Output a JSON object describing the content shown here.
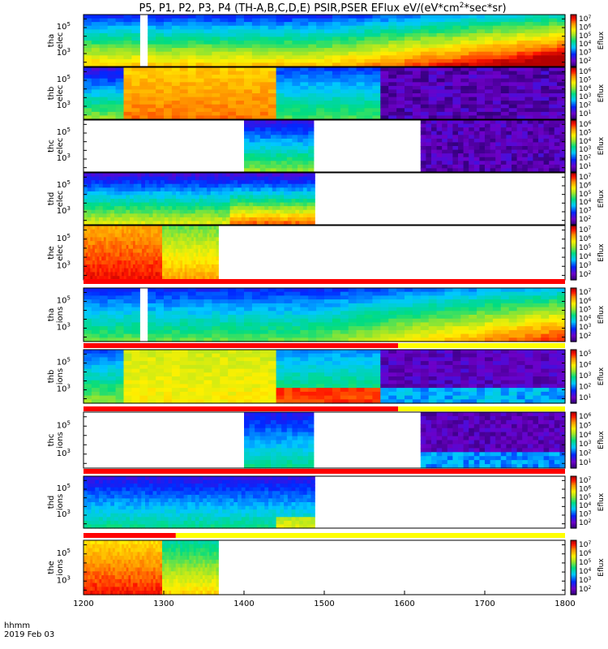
{
  "chart_data": {
    "type": "heatmap",
    "title": "P5, P1, P2, P3, P4 (TH-A,B,C,D,E) PSIR,PSER EFlux eV/(eV*cm",
    "title_sup": "2",
    "title_end": "*sec*sr)",
    "x_tick_labels": [
      "1200",
      "1300",
      "1400",
      "1500",
      "1600",
      "1700",
      "1800"
    ],
    "x_ticks": [
      1200,
      1300,
      1400,
      1500,
      1600,
      1700,
      1800
    ],
    "xlim": [
      1200,
      1800
    ],
    "x_footer": [
      "hhmm",
      "2019 Feb 03"
    ],
    "colorbar_label": "Eflux",
    "panels": [
      {
        "line1": "tha",
        "line2": "elec",
        "yticks": [
          "10",
          "10"
        ],
        "yexp": [
          "5",
          "3"
        ],
        "colorbar_ticks": [
          "10",
          "10",
          "10",
          "10",
          "10",
          "10"
        ],
        "colorbar_exp": [
          "7",
          "6",
          "5",
          "4",
          "3",
          "2"
        ],
        "data_start": 1200,
        "data_end": 1800,
        "gap": [
          1267,
          1281
        ],
        "kind": "tha_e"
      },
      {
        "line1": "thb",
        "line2": "elec",
        "yticks": [
          "10",
          "10"
        ],
        "yexp": [
          "5",
          "3"
        ],
        "colorbar_ticks": [
          "10",
          "10",
          "10",
          "10",
          "10",
          "10"
        ],
        "colorbar_exp": [
          "6",
          "5",
          "4",
          "3",
          "2",
          "1"
        ],
        "data_start": 1200,
        "data_end": 1800,
        "gap": null,
        "kind": "thb_e"
      },
      {
        "line1": "thc",
        "line2": "elec",
        "yticks": [
          "10",
          "10"
        ],
        "yexp": [
          "5",
          "3"
        ],
        "colorbar_ticks": [
          "10",
          "10",
          "10",
          "10",
          "10",
          "10"
        ],
        "colorbar_exp": [
          "6",
          "5",
          "4",
          "3",
          "2",
          "1"
        ],
        "data_start": 1400,
        "data_end": 1800,
        "gap": [
          1488,
          1618
        ],
        "kind": "thc_e"
      },
      {
        "line1": "thd",
        "line2": "elec",
        "yticks": [
          "10",
          "10"
        ],
        "yexp": [
          "5",
          "3"
        ],
        "colorbar_ticks": [
          "10",
          "10",
          "10",
          "10",
          "10",
          "10"
        ],
        "colorbar_exp": [
          "7",
          "6",
          "5",
          "4",
          "3",
          "2"
        ],
        "data_start": 1200,
        "data_end": 1488,
        "gap": null,
        "kind": "thd_e"
      },
      {
        "line1": "the",
        "line2": "elec",
        "yticks": [
          "10",
          "10"
        ],
        "yexp": [
          "5",
          "3"
        ],
        "colorbar_ticks": [
          "10",
          "10",
          "10",
          "10",
          "10",
          "10"
        ],
        "colorbar_exp": [
          "7",
          "6",
          "5",
          "4",
          "3",
          "2"
        ],
        "data_start": 1200,
        "data_end": 1368,
        "gap": null,
        "kind": "the_e"
      },
      {
        "line1": "tha",
        "line2": "ions",
        "yticks": [
          "10",
          "10"
        ],
        "yexp": [
          "5",
          "3"
        ],
        "colorbar_ticks": [
          "10",
          "10",
          "10",
          "10",
          "10",
          "10"
        ],
        "colorbar_exp": [
          "7",
          "6",
          "5",
          "4",
          "3",
          "2"
        ],
        "data_start": 1200,
        "data_end": 1800,
        "gap": [
          1267,
          1281
        ],
        "kind": "tha_i"
      },
      {
        "line1": "thb",
        "line2": "ions",
        "yticks": [
          "10",
          "10"
        ],
        "yexp": [
          "5",
          "3"
        ],
        "colorbar_ticks": [
          "10",
          "10",
          "10",
          "10",
          "10"
        ],
        "colorbar_exp": [
          "5",
          "4",
          "3",
          "2",
          "1"
        ],
        "data_start": 1200,
        "data_end": 1800,
        "gap": null,
        "kind": "thb_i"
      },
      {
        "line1": "thc",
        "line2": "ions",
        "yticks": [
          "10",
          "10"
        ],
        "yexp": [
          "5",
          "3"
        ],
        "colorbar_ticks": [
          "10",
          "10",
          "10",
          "10",
          "10",
          "10"
        ],
        "colorbar_exp": [
          "6",
          "5",
          "4",
          "3",
          "2",
          "1"
        ],
        "data_start": 1400,
        "data_end": 1800,
        "gap": [
          1488,
          1618
        ],
        "kind": "thc_i"
      },
      {
        "line1": "thd",
        "line2": "ions",
        "yticks": [
          "10",
          "10"
        ],
        "yexp": [
          "5",
          "3"
        ],
        "colorbar_ticks": [
          "10",
          "10",
          "10",
          "10",
          "10",
          "10"
        ],
        "colorbar_exp": [
          "7",
          "6",
          "5",
          "4",
          "3",
          "2"
        ],
        "data_start": 1200,
        "data_end": 1488,
        "gap": null,
        "kind": "thd_i"
      },
      {
        "line1": "the",
        "line2": "ions",
        "yticks": [
          "10",
          "10"
        ],
        "yexp": [
          "5",
          "3"
        ],
        "colorbar_ticks": [
          "10",
          "10",
          "10",
          "10",
          "10",
          "10"
        ],
        "colorbar_exp": [
          "7",
          "6",
          "5",
          "4",
          "3",
          "2"
        ],
        "data_start": 1200,
        "data_end": 1368,
        "gap": null,
        "kind": "the_i"
      }
    ],
    "flag_bars": [
      {
        "after_panel": 4,
        "segments": [
          {
            "from": 1200,
            "to": 1800,
            "color": "#ff0000"
          }
        ]
      },
      {
        "after_panel": 5,
        "segments": [
          {
            "from": 1200,
            "to": 1592,
            "color": "#ff0000"
          },
          {
            "from": 1592,
            "to": 1800,
            "color": "#ffff00"
          }
        ]
      },
      {
        "after_panel": 6,
        "segments": [
          {
            "from": 1200,
            "to": 1592,
            "color": "#ff0000"
          },
          {
            "from": 1592,
            "to": 1800,
            "color": "#ffff00"
          }
        ]
      },
      {
        "after_panel": 7,
        "segments": [
          {
            "from": 1200,
            "to": 1800,
            "color": "#ff0000"
          }
        ]
      },
      {
        "after_panel": 8,
        "segments": [
          {
            "from": 1200,
            "to": 1315,
            "color": "#ff0000"
          },
          {
            "from": 1315,
            "to": 1800,
            "color": "#ffff00"
          }
        ]
      }
    ]
  }
}
